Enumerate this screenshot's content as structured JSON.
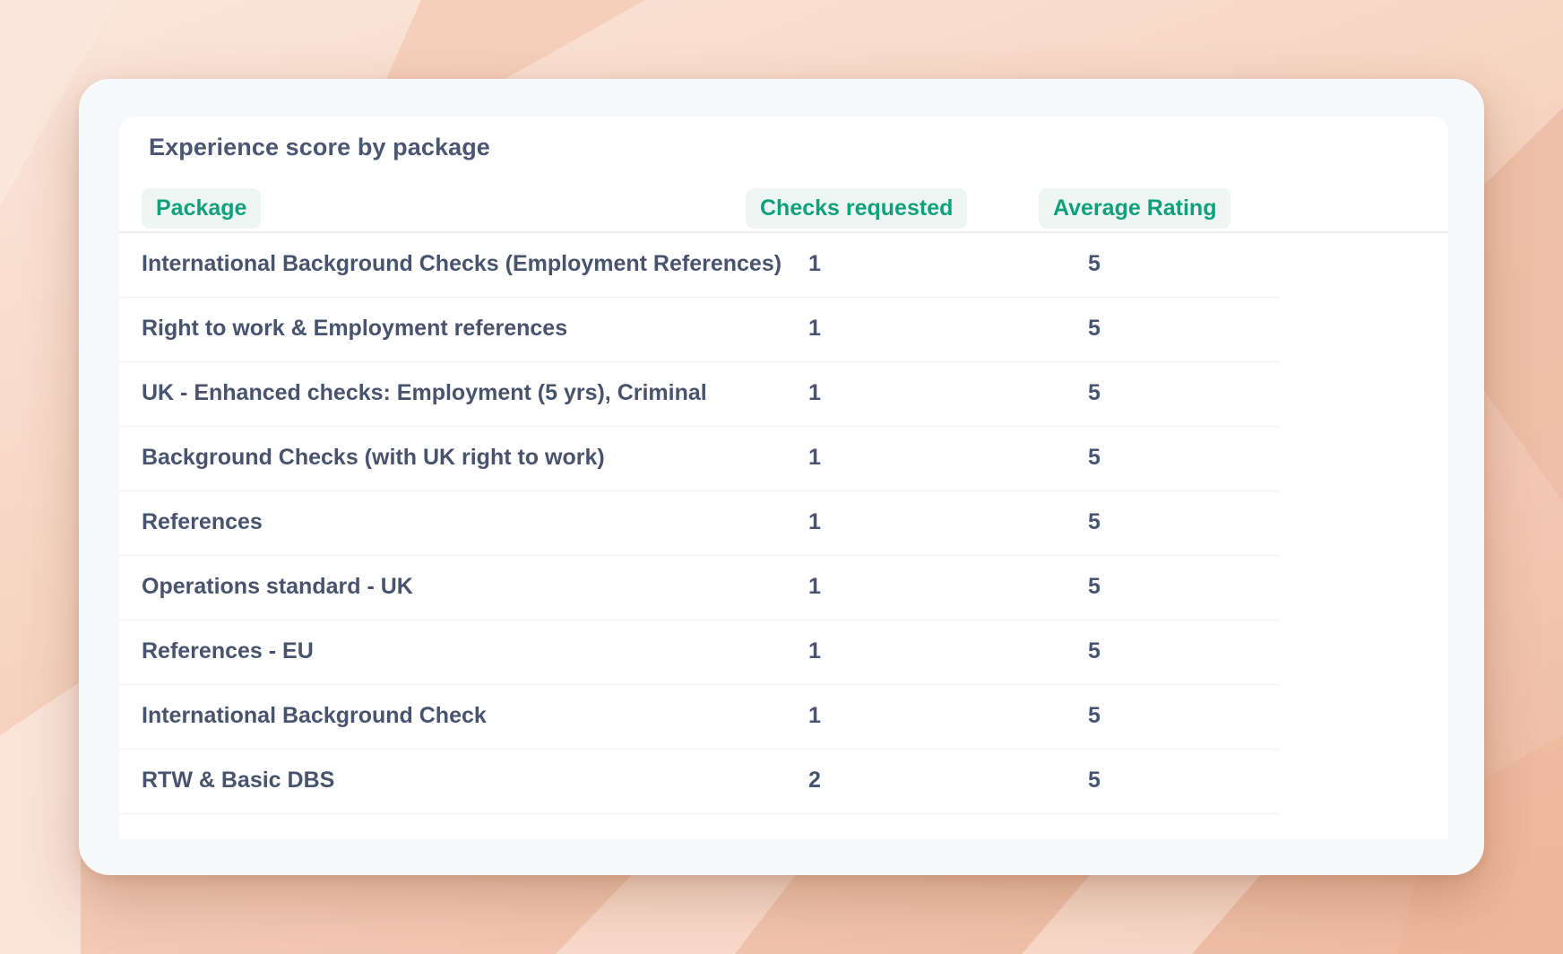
{
  "panel": {
    "title": "Experience score by package"
  },
  "table": {
    "columns": {
      "package": "Package",
      "checks": "Checks requested",
      "rating": "Average Rating"
    },
    "rows": [
      {
        "package": "International Background Checks (Employment References)",
        "checks": "1",
        "rating": "5"
      },
      {
        "package": "Right to work & Employment references",
        "checks": "1",
        "rating": "5"
      },
      {
        "package": "UK - Enhanced checks: Employment (5 yrs), Criminal",
        "checks": "1",
        "rating": "5"
      },
      {
        "package": "Background Checks (with UK right to work)",
        "checks": "1",
        "rating": "5"
      },
      {
        "package": "References",
        "checks": "1",
        "rating": "5"
      },
      {
        "package": "Operations standard - UK",
        "checks": "1",
        "rating": "5"
      },
      {
        "package": "References - EU",
        "checks": "1",
        "rating": "5"
      },
      {
        "package": "International Background Check",
        "checks": "1",
        "rating": "5"
      },
      {
        "package": "RTW & Basic DBS",
        "checks": "2",
        "rating": "5"
      }
    ]
  },
  "colors": {
    "accent": "#12a07c",
    "accent_bg": "#eef6f3",
    "text": "#48536e"
  }
}
